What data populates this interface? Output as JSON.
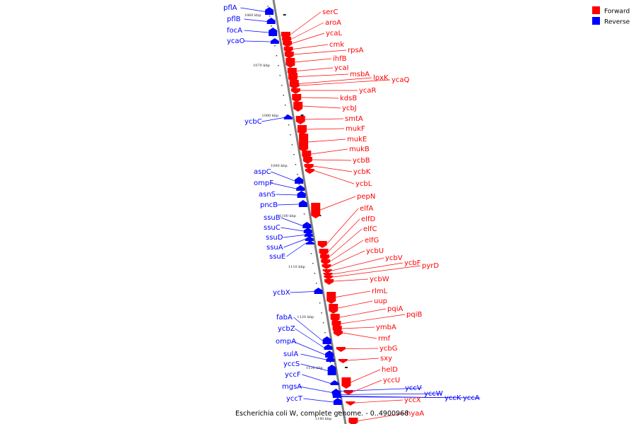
{
  "caption": "Escherichia coli W, complete genome. - 0..4900968",
  "legend": [
    {
      "label": "Forward",
      "color": "#ff0000"
    },
    {
      "label": "Reverse",
      "color": "#0000ff"
    }
  ],
  "ticks": [
    "1060 kbp",
    "1070 kbp",
    "1080 kbp",
    "1090 kbp",
    "1100 kbp",
    "1110 kbp",
    "1120 kbp",
    "1130 kbp",
    "1140 kbp"
  ],
  "colors": {
    "forward": "#ff0000",
    "reverse": "#0000ff",
    "backbone": "#808080"
  },
  "reverse_genes": [
    "pflA",
    "pflB",
    "focA",
    "ycaO",
    "ycbC",
    "aspC",
    "ompF",
    "asnS",
    "pncB",
    "ssuB",
    "ssuC",
    "ssuD",
    "ssuA",
    "ssuE",
    "ycbX",
    "fabA",
    "ycbZ",
    "ompA",
    "sulA",
    "yccS",
    "yccF",
    "mgsA",
    "yccT",
    "yccV",
    "yccW",
    "yccK",
    "yccA"
  ],
  "forward_genes": [
    "serC",
    "aroA",
    "ycaL",
    "cmk",
    "rpsA",
    "ihfB",
    "ycaI",
    "msbA",
    "lpxK",
    "ycaQ",
    "ycaR",
    "kdsB",
    "ycbJ",
    "smtA",
    "mukF",
    "mukE",
    "mukB",
    "ycbB",
    "ycbK",
    "ycbL",
    "pepN",
    "elfA",
    "elfD",
    "elfC",
    "elfG",
    "ycbU",
    "ycbV",
    "ycbF",
    "pyrD",
    "ycbW",
    "rlmL",
    "uup",
    "pqiA",
    "pqiB",
    "ymbA",
    "rmf",
    "ycbG",
    "sxy",
    "helD",
    "yccU",
    "yccX",
    "hyaA"
  ]
}
